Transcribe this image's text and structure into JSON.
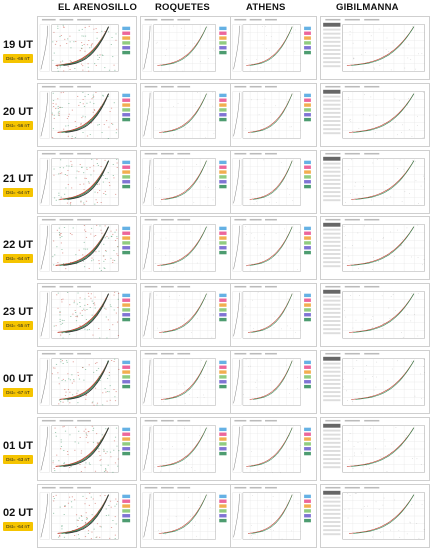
{
  "columns": [
    {
      "id": "c1",
      "label": "EL ARENOSILLO"
    },
    {
      "id": "c2",
      "label": "ROQUETES"
    },
    {
      "id": "c3",
      "label": "ATHENS"
    },
    {
      "id": "c4",
      "label": "GIBILMANNA"
    }
  ],
  "rows": [
    {
      "time": "19 UT",
      "dst": "Dst= -66 nT"
    },
    {
      "time": "20 UT",
      "dst": "Dst= -56 nT"
    },
    {
      "time": "21 UT",
      "dst": "Dst= -64 nT"
    },
    {
      "time": "22 UT",
      "dst": "Dst= -64 nT"
    },
    {
      "time": "23 UT",
      "dst": "Dst= -55 nT"
    },
    {
      "time": "00 UT",
      "dst": "Dst= -67 nT"
    },
    {
      "time": "01 UT",
      "dst": "Dst= -63 nT"
    },
    {
      "time": "02 UT",
      "dst": "Dst= -64 nT"
    }
  ],
  "colors": {
    "badge": "#f5c400",
    "trace_ordinary": "#c0392b",
    "trace_extraordinary": "#2e8b57",
    "trace_dark": "#333333",
    "grid": "#e2e2e2"
  }
}
